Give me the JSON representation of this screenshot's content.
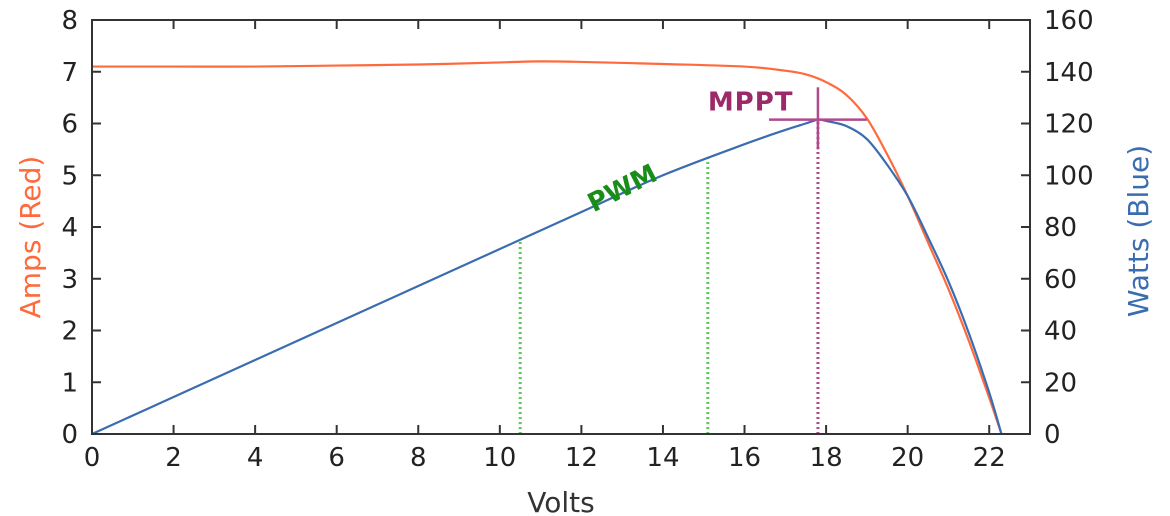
{
  "chart_data": {
    "type": "line",
    "xlabel": "Volts",
    "ylabel_left": "Amps (Red)",
    "ylabel_right": "Watts (Blue)",
    "xlim": [
      0,
      23
    ],
    "ylim_left": [
      0,
      8
    ],
    "ylim_right": [
      0,
      160
    ],
    "x_ticks": [
      "0",
      "2",
      "4",
      "6",
      "8",
      "10",
      "12",
      "14",
      "16",
      "18",
      "20",
      "22"
    ],
    "y_ticks_left": [
      "0",
      "1",
      "2",
      "3",
      "4",
      "5",
      "6",
      "7",
      "8"
    ],
    "y_ticks_right": [
      "0",
      "20",
      "40",
      "60",
      "80",
      "100",
      "120",
      "140",
      "160"
    ],
    "series": [
      {
        "axis": "left",
        "color": "#ff6a3d",
        "x": [
          0,
          2,
          4,
          6,
          8,
          10,
          11,
          12,
          14,
          16,
          17,
          17.5,
          18,
          18.5,
          19,
          19.5,
          20,
          20.5,
          21,
          21.5,
          22,
          22.3
        ],
        "y": [
          7.1,
          7.1,
          7.1,
          7.12,
          7.14,
          7.18,
          7.2,
          7.19,
          7.15,
          7.1,
          7.02,
          6.95,
          6.8,
          6.55,
          6.1,
          5.4,
          4.6,
          3.7,
          2.8,
          1.8,
          0.7,
          0
        ]
      },
      {
        "axis": "right",
        "color": "#3a6db0",
        "x": [
          0,
          2,
          4,
          6,
          8,
          10,
          12,
          14,
          16,
          17,
          17.5,
          17.8,
          18,
          18.5,
          19,
          19.5,
          20,
          20.5,
          21,
          21.5,
          22,
          22.3
        ],
        "y": [
          0,
          14.3,
          28.6,
          42.9,
          57.2,
          71.5,
          85.8,
          100,
          112,
          117.5,
          120,
          121.5,
          121,
          119,
          114,
          104,
          92,
          76,
          59,
          39,
          16,
          0
        ]
      }
    ],
    "annotations": [
      {
        "text": "PWM",
        "x": 13.1,
        "y_left": 4.6,
        "color": "#1a8c1a",
        "rotate": -27
      },
      {
        "text": "MPPT",
        "x": 15.1,
        "y_left": 6.25,
        "color": "#9c2a68"
      }
    ],
    "guide_lines": [
      {
        "x": 10.5,
        "y_top_right": 75.0,
        "color": "#5cc95c"
      },
      {
        "x": 15.1,
        "y_top_right": 108.0,
        "color": "#5cc95c"
      },
      {
        "x": 17.8,
        "y_top_right": 121.5,
        "color": "#b04a8c"
      }
    ],
    "mppt_cross": {
      "x": 17.8,
      "y_right": 121.5,
      "color": "#b04a8c",
      "x_from": 16.6,
      "x_to": 19.0,
      "y_from": 110,
      "y_to": 134
    }
  }
}
